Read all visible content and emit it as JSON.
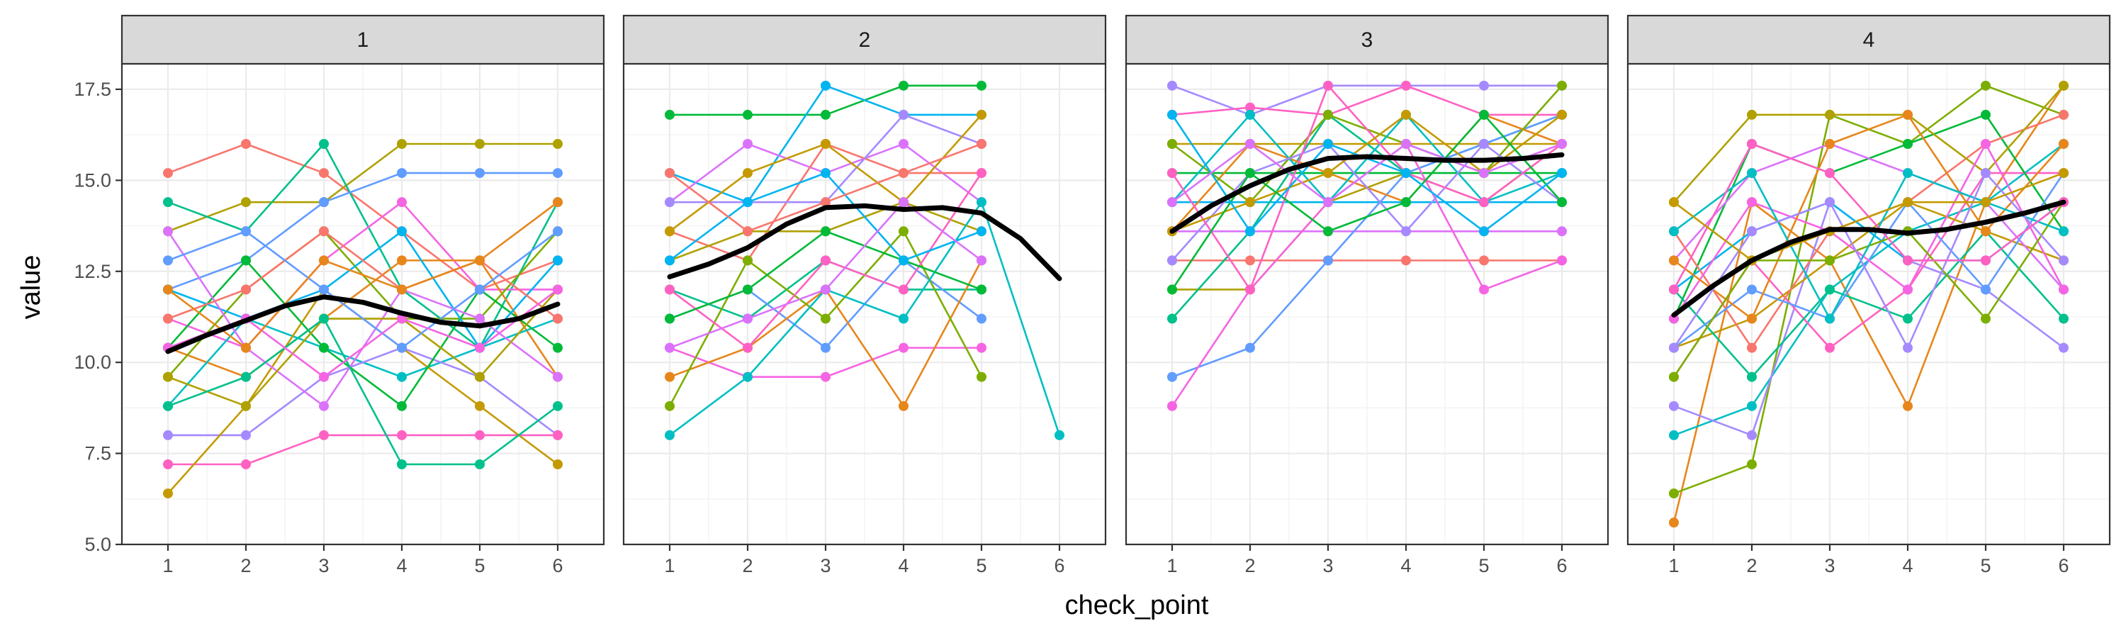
{
  "chart_data": {
    "type": "line",
    "facet_variable": "",
    "xlabel": "check_point",
    "ylabel": "value",
    "ylim": [
      5.0,
      18.2
    ],
    "y_ticks": [
      "5.0",
      "7.5",
      "10.0",
      "12.5",
      "15.0",
      "17.5"
    ],
    "y_tick_values": [
      5.0,
      7.5,
      10.0,
      12.5,
      15.0,
      17.5
    ],
    "x_ticks": [
      "1",
      "2",
      "3",
      "4",
      "5",
      "6"
    ],
    "x_tick_values": [
      1,
      2,
      3,
      4,
      5,
      6
    ],
    "grid": true,
    "legend": "none",
    "smooth_color": "#000000",
    "strip_fill": "#d9d9d9",
    "individual_line_colors": [
      "#F8766D",
      "#E7861B",
      "#C49A00",
      "#AFA100",
      "#7CAE00",
      "#00BA38",
      "#00C08B",
      "#00BFC4",
      "#00B4F0",
      "#619CFF",
      "#A58AFF",
      "#DB72FB",
      "#F564E3",
      "#FF61C3"
    ],
    "panels": [
      {
        "label": "1",
        "smooth": {
          "x": [
            1,
            1.5,
            2,
            2.5,
            3,
            3.5,
            4,
            4.5,
            5,
            5.5,
            6
          ],
          "y": [
            10.3,
            10.75,
            11.15,
            11.55,
            11.8,
            11.65,
            11.35,
            11.1,
            11.0,
            11.2,
            11.6
          ]
        },
        "series": [
          {
            "values": [
              15.2,
              16.0,
              15.2,
              13.6,
              12.0,
              12.8
            ]
          },
          {
            "values": [
              13.6,
              14.4,
              14.4,
              16.0,
              16.0,
              16.0
            ]
          },
          {
            "values": [
              14.4,
              13.6,
              16.0,
              12.0,
              10.4,
              14.4
            ]
          },
          {
            "values": [
              12.0,
              12.8,
              14.4,
              15.2,
              15.2,
              15.2
            ]
          },
          {
            "values": [
              11.2,
              10.4,
              12.8,
              14.4,
              12.0,
              12.0
            ]
          },
          {
            "values": [
              10.4,
              9.6,
              11.2,
              12.8,
              12.8,
              9.6
            ]
          },
          {
            "values": [
              9.6,
              12.0,
              13.6,
              11.2,
              11.2,
              13.6
            ]
          },
          {
            "values": [
              8.8,
              11.2,
              10.4,
              9.6,
              10.4,
              11.2
            ]
          },
          {
            "values": [
              8.0,
              8.0,
              9.6,
              10.4,
              9.6,
              8.0
            ]
          },
          {
            "values": [
              7.2,
              7.2,
              8.0,
              8.0,
              8.0,
              8.0
            ]
          },
          {
            "values": [
              6.4,
              8.8,
              12.0,
              10.4,
              8.8,
              7.2
            ]
          },
          {
            "values": [
              10.4,
              12.8,
              10.4,
              8.8,
              12.0,
              10.4
            ]
          },
          {
            "values": [
              12.0,
              11.2,
              12.0,
              13.6,
              10.4,
              12.8
            ]
          },
          {
            "values": [
              13.6,
              10.4,
              8.8,
              12.0,
              11.2,
              9.6
            ]
          },
          {
            "values": [
              11.2,
              12.0,
              13.6,
              12.0,
              12.8,
              11.2
            ]
          },
          {
            "values": [
              9.6,
              8.8,
              11.2,
              11.2,
              9.6,
              12.0
            ]
          },
          {
            "values": [
              8.8,
              9.6,
              11.2,
              7.2,
              7.2,
              8.8
            ]
          },
          {
            "values": [
              12.8,
              13.6,
              12.0,
              10.4,
              12.0,
              13.6
            ]
          },
          {
            "values": [
              10.4,
              11.2,
              9.6,
              11.2,
              10.4,
              12.0
            ]
          },
          {
            "values": [
              12.0,
              10.4,
              12.8,
              12.0,
              12.8,
              14.4
            ]
          }
        ]
      },
      {
        "label": "2",
        "smooth": {
          "x": [
            1,
            1.5,
            2,
            2.5,
            3,
            3.5,
            4,
            4.5,
            5,
            5.5,
            6
          ],
          "y": [
            12.35,
            12.7,
            13.15,
            13.8,
            14.25,
            14.3,
            14.2,
            14.25,
            14.1,
            13.4,
            12.3
          ]
        },
        "series": [
          {
            "values": [
              16.8,
              16.8,
              16.8,
              17.6,
              17.6
            ]
          },
          {
            "values": [
              15.2,
              14.4,
              17.6,
              16.8,
              16.8
            ]
          },
          {
            "values": [
              14.4,
              16.0,
              15.2,
              16.0,
              14.4
            ]
          },
          {
            "values": [
              13.6,
              12.8,
              16.0,
              15.2,
              15.2
            ]
          },
          {
            "values": [
              12.8,
              13.6,
              13.6,
              14.4,
              13.6
            ]
          },
          {
            "values": [
              12.0,
              11.2,
              12.8,
              12.0,
              12.0
            ]
          },
          {
            "values": [
              11.2,
              12.0,
              10.4,
              12.8,
              11.2
            ]
          },
          {
            "values": [
              10.4,
              9.6,
              9.6,
              10.4,
              10.4
            ]
          },
          {
            "values": [
              9.6,
              10.4,
              12.0,
              8.8,
              12.8
            ]
          },
          {
            "values": [
              8.8,
              12.8,
              11.2,
              13.6,
              9.6
            ]
          },
          {
            "values": [
              8.0,
              9.6,
              12.0,
              11.2,
              14.4,
              8.0
            ]
          },
          {
            "values": [
              14.4,
              14.4,
              14.4,
              16.8,
              16.0
            ]
          },
          {
            "values": [
              12.0,
              10.4,
              12.8,
              12.0,
              15.2
            ]
          },
          {
            "values": [
              13.6,
              15.2,
              16.0,
              14.4,
              16.8
            ]
          },
          {
            "values": [
              11.2,
              12.0,
              13.6,
              12.8,
              12.0
            ]
          },
          {
            "values": [
              12.8,
              14.4,
              15.2,
              12.8,
              13.6
            ]
          },
          {
            "values": [
              10.4,
              11.2,
              12.0,
              14.4,
              12.8
            ]
          },
          {
            "values": [
              15.2,
              13.6,
              14.4,
              15.2,
              16.0
            ]
          }
        ]
      },
      {
        "label": "3",
        "smooth": {
          "x": [
            1,
            1.5,
            2,
            2.5,
            3,
            3.5,
            4,
            4.5,
            5,
            5.5,
            6
          ],
          "y": [
            13.6,
            14.3,
            14.85,
            15.3,
            15.6,
            15.65,
            15.6,
            15.55,
            15.55,
            15.6,
            15.7
          ]
        },
        "series": [
          {
            "values": [
              17.6,
              16.8,
              17.6,
              17.6,
              17.6,
              17.6
            ]
          },
          {
            "values": [
              16.8,
              17.0,
              16.8,
              17.6,
              16.8,
              16.8
            ]
          },
          {
            "values": [
              16.0,
              16.0,
              16.0,
              16.0,
              16.0,
              16.0
            ]
          },
          {
            "values": [
              15.2,
              15.2,
              15.2,
              15.2,
              15.2,
              15.2
            ]
          },
          {
            "values": [
              14.4,
              14.4,
              14.4,
              14.4,
              14.4,
              14.4
            ]
          },
          {
            "values": [
              13.6,
              13.6,
              13.6,
              13.6,
              13.6,
              13.6
            ]
          },
          {
            "values": [
              12.8,
              12.8,
              12.8,
              12.8,
              12.8,
              12.8
            ]
          },
          {
            "values": [
              12.0,
              12.0,
              14.4,
              15.2,
              14.4,
              16.0
            ]
          },
          {
            "values": [
              11.2,
              13.6,
              16.8,
              15.2,
              16.0,
              16.8
            ]
          },
          {
            "values": [
              9.6,
              10.4,
              12.8,
              15.2,
              16.0,
              16.8
            ]
          },
          {
            "values": [
              8.8,
              12.0,
              14.4,
              16.0,
              12.0,
              12.8
            ]
          },
          {
            "values": [
              13.6,
              16.0,
              15.2,
              14.4,
              16.8,
              16.0
            ]
          },
          {
            "values": [
              16.0,
              14.4,
              16.8,
              16.0,
              15.2,
              17.6
            ]
          },
          {
            "values": [
              14.4,
              16.8,
              14.4,
              16.8,
              14.4,
              15.2
            ]
          },
          {
            "values": [
              12.8,
              15.2,
              16.0,
              13.6,
              16.0,
              14.4
            ]
          },
          {
            "values": [
              15.2,
              12.0,
              17.6,
              15.2,
              14.4,
              16.0
            ]
          },
          {
            "values": [
              13.6,
              14.4,
              15.2,
              16.8,
              15.2,
              16.8
            ]
          },
          {
            "values": [
              12.0,
              15.2,
              13.6,
              14.4,
              16.8,
              14.4
            ]
          },
          {
            "values": [
              16.8,
              13.6,
              16.0,
              15.2,
              13.6,
              15.2
            ]
          },
          {
            "values": [
              14.4,
              16.0,
              14.4,
              16.0,
              15.2,
              16.0
            ]
          }
        ]
      },
      {
        "label": "4",
        "smooth": {
          "x": [
            1,
            1.5,
            2,
            2.5,
            3,
            3.5,
            4,
            4.5,
            5,
            5.5,
            6
          ],
          "y": [
            11.3,
            12.1,
            12.8,
            13.3,
            13.65,
            13.65,
            13.55,
            13.65,
            13.85,
            14.1,
            14.4
          ]
        },
        "series": [
          {
            "values": [
              5.6,
              14.4,
              12.8,
              8.8,
              14.4,
              17.6
            ]
          },
          {
            "values": [
              6.4,
              7.2,
              16.8,
              16.0,
              17.6,
              16.8
            ]
          },
          {
            "values": [
              8.0,
              8.8,
              12.0,
              13.6,
              14.4,
              16.0
            ]
          },
          {
            "values": [
              8.8,
              8.0,
              14.4,
              12.8,
              12.0,
              10.4
            ]
          },
          {
            "values": [
              9.6,
              12.8,
              10.4,
              12.0,
              15.2,
              15.2
            ]
          },
          {
            "values": [
              10.4,
              11.2,
              12.8,
              14.4,
              13.6,
              12.8
            ]
          },
          {
            "values": [
              11.2,
              16.0,
              15.2,
              16.0,
              16.8,
              13.6
            ]
          },
          {
            "values": [
              12.0,
              13.6,
              14.4,
              12.8,
              12.8,
              14.4
            ]
          },
          {
            "values": [
              12.8,
              15.2,
              16.0,
              15.2,
              14.4,
              12.0
            ]
          },
          {
            "values": [
              13.6,
              10.4,
              13.6,
              14.4,
              16.0,
              16.8
            ]
          },
          {
            "values": [
              14.4,
              16.8,
              16.8,
              16.8,
              15.2,
              17.6
            ]
          },
          {
            "values": [
              12.0,
              9.6,
              12.0,
              11.2,
              13.6,
              11.2
            ]
          },
          {
            "values": [
              10.4,
              12.0,
              11.2,
              14.4,
              12.0,
              15.2
            ]
          },
          {
            "values": [
              11.2,
              14.4,
              13.6,
              12.0,
              16.0,
              12.0
            ]
          },
          {
            "values": [
              12.8,
              11.2,
              16.0,
              16.8,
              13.6,
              16.0
            ]
          },
          {
            "values": [
              9.6,
              12.8,
              12.8,
              13.6,
              11.2,
              14.4
            ]
          },
          {
            "values": [
              13.6,
              15.2,
              11.2,
              15.2,
              14.4,
              13.6
            ]
          },
          {
            "values": [
              10.4,
              13.6,
              14.4,
              10.4,
              15.2,
              12.8
            ]
          },
          {
            "values": [
              12.0,
              16.0,
              15.2,
              12.8,
              12.8,
              14.4
            ]
          },
          {
            "values": [
              14.4,
              12.8,
              13.6,
              14.4,
              14.4,
              15.2
            ]
          }
        ]
      }
    ]
  }
}
